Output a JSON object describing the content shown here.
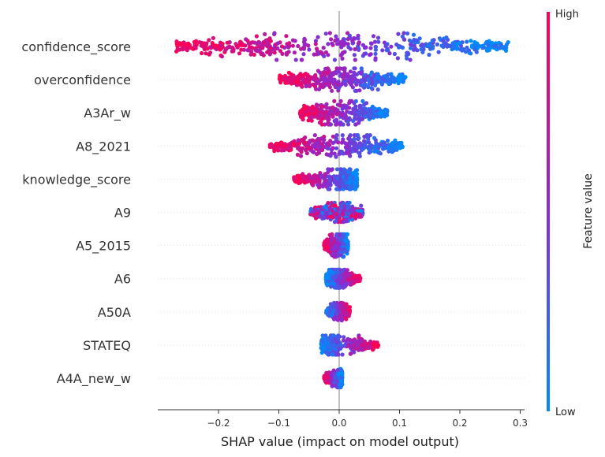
{
  "chart_data": {
    "type": "scatter",
    "subtype": "shap-beeswarm",
    "xlabel": "SHAP value (impact on model output)",
    "xlim": [
      -0.3,
      0.3
    ],
    "xticks": [
      -0.2,
      -0.1,
      0.0,
      0.1,
      0.2,
      0.3
    ],
    "xtick_labels": [
      "−0.2",
      "−0.1",
      "0.0",
      "0.1",
      "0.2",
      "0.3"
    ],
    "zero_line": true,
    "colorbar": {
      "title": "Feature value",
      "high_label": "High",
      "low_label": "Low",
      "high_color": "#ff0052",
      "mid_color": "#8a2bd2",
      "low_color": "#008bfb"
    },
    "features": [
      {
        "name": "confidence_score",
        "min": -0.27,
        "max": 0.28,
        "low_side": "positive",
        "spread": 1.0
      },
      {
        "name": "overconfidence",
        "min": -0.1,
        "max": 0.11,
        "low_side": "positive",
        "spread": 0.75
      },
      {
        "name": "A3Ar_w",
        "min": -0.065,
        "max": 0.08,
        "low_side": "positive",
        "spread": 0.8
      },
      {
        "name": "A8_2021",
        "min": -0.115,
        "max": 0.105,
        "low_side": "positive",
        "spread": 0.7
      },
      {
        "name": "knowledge_score",
        "min": -0.075,
        "max": 0.03,
        "low_side": "positive",
        "spread": 0.6
      },
      {
        "name": "A9",
        "min": -0.048,
        "max": 0.04,
        "low_side": "mixed",
        "spread": 0.55
      },
      {
        "name": "A5_2015",
        "min": -0.025,
        "max": 0.015,
        "low_side": "positive",
        "spread": 0.75
      },
      {
        "name": "A6",
        "min": -0.022,
        "max": 0.035,
        "low_side": "negative",
        "spread": 0.5
      },
      {
        "name": "A50A",
        "min": -0.022,
        "max": 0.018,
        "low_side": "negative",
        "spread": 0.5
      },
      {
        "name": "STATEQ",
        "min": -0.03,
        "max": 0.065,
        "low_side": "negative",
        "spread": 0.55
      },
      {
        "name": "A4A_new_w",
        "min": -0.025,
        "max": 0.005,
        "low_side": "positive",
        "spread": 0.5
      }
    ]
  }
}
